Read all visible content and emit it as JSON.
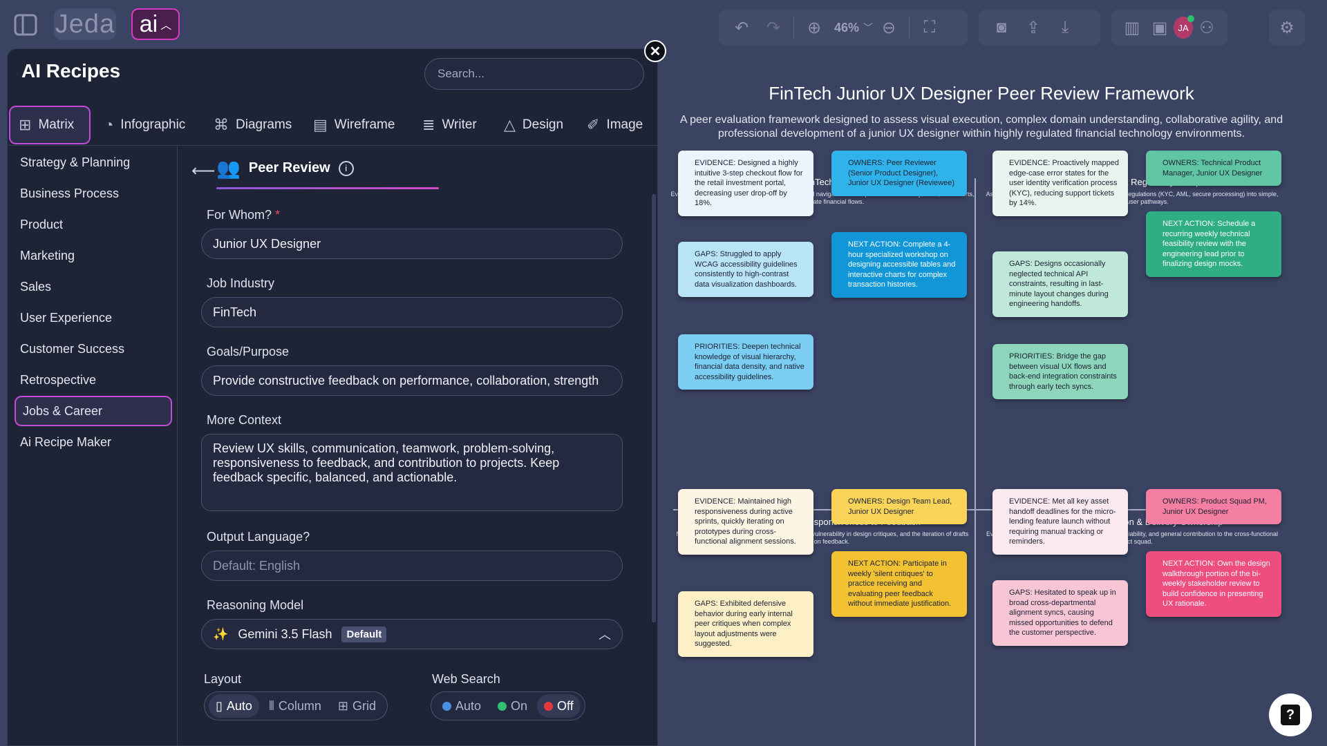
{
  "app": {
    "brand": "Jeda",
    "ai_label": "ai"
  },
  "toolbar": {
    "zoom": "46%"
  },
  "user": {
    "initials": "JA"
  },
  "panel": {
    "title": "AI Recipes",
    "search_placeholder": "Search...",
    "tabs": [
      {
        "label": "Matrix",
        "icon": "grid-icon"
      },
      {
        "label": "Infographic",
        "icon": "pie-chart-icon"
      },
      {
        "label": "Diagrams",
        "icon": "diagram-icon"
      },
      {
        "label": "Wireframe",
        "icon": "wireframe-icon"
      },
      {
        "label": "Writer",
        "icon": "writer-icon"
      },
      {
        "label": "Design",
        "icon": "shapes-icon"
      },
      {
        "label": "Image",
        "icon": "image-icon"
      }
    ],
    "categories": [
      "Strategy & Planning",
      "Business Process",
      "Product",
      "Marketing",
      "Sales",
      "User Experience",
      "Customer Success",
      "Retrospective",
      "Jobs & Career",
      "Ai Recipe Maker"
    ],
    "recipe": {
      "title": "Peer Review"
    },
    "fields": {
      "for_whom": {
        "label": "For Whom?",
        "required": "*",
        "value": "Junior UX Designer"
      },
      "industry": {
        "label": "Job Industry",
        "value": "FinTech"
      },
      "goals": {
        "label": "Goals/Purpose",
        "value": "Provide constructive feedback on performance, collaboration, strength"
      },
      "context": {
        "label": "More Context",
        "value": "Review UX skills, communication, teamwork, problem-solving, responsiveness to feedback, and contribution to projects. Keep feedback specific, balanced, and actionable."
      },
      "language": {
        "label": "Output Language?",
        "placeholder": "Default: English"
      },
      "model": {
        "label": "Reasoning Model",
        "value": "Gemini 3.5 Flash",
        "badge": "Default"
      }
    },
    "layout": {
      "label": "Layout",
      "options": [
        "Auto",
        "Column",
        "Grid"
      ],
      "selected": "Auto"
    },
    "web_search": {
      "label": "Web Search",
      "options": [
        "Auto",
        "On",
        "Off"
      ],
      "selected": "Off",
      "colors": [
        "#4a90e2",
        "#2fbf71",
        "#e5383b"
      ]
    }
  },
  "document": {
    "title": "FinTech Junior UX Designer Peer Review Framework",
    "subtitle": "A peer evaluation framework designed to assess visual execution, complex domain understanding, collaborative agility, and professional development of a junior UX designer within highly regulated financial technology environments.",
    "quadrants": [
      {
        "emoji": "💳",
        "title": "UX Craft & FinTech Domain Mastery",
        "desc": "Evaluating layout execution, interface hierarchy, and navigation of complex transactional systems, fraud alerts, and multi-state financial flows.",
        "notes": [
          {
            "text": "EVIDENCE: Designed a highly intuitive 3-step checkout flow for the retail investment portal, decreasing user drop-off by 18%.",
            "color": "#e9f4fc"
          },
          {
            "text": "OWNERS: Peer Reviewer (Senior Product Designer), Junior UX Designer (Reviewee)",
            "color": "#2fb3ea"
          },
          {
            "text": "GAPS: Struggled to apply WCAG accessibility guidelines consistently to high-contrast data visualization dashboards.",
            "color": "#b9e3f7"
          },
          {
            "text": "NEXT ACTION: Complete a 4-hour specialized workshop on designing accessible tables and interactive charts for complex transaction histories.",
            "color": "#1197d8"
          },
          {
            "text": "PRIORITIES: Deepen technical knowledge of visual hierarchy, financial data density, and native accessibility guidelines.",
            "color": "#7ccdf2"
          }
        ]
      },
      {
        "emoji": "🔒",
        "title": "Problem-Solving & Regulatory Compliance",
        "desc": "Assessing the ability to translate complex financial regulations (KYC, AML, secure processing) into simple, stress-free user pathways.",
        "notes": [
          {
            "text": "EVIDENCE: Proactively mapped edge-case error states for the user identity verification process (KYC), reducing support tickets by 14%.",
            "color": "#e8f5ef"
          },
          {
            "text": "OWNERS: Technical Product Manager, Junior UX Designer",
            "color": "#5fc5a2"
          },
          {
            "text": "GAPS: Designs occasionally neglected technical API constraints, resulting in last-minute layout changes during engineering handoffs.",
            "color": "#c0e8d9"
          },
          {
            "text": "NEXT ACTION: Schedule a recurring weekly technical feasibility review with the engineering lead prior to finalizing design mocks.",
            "color": "#2fae84"
          },
          {
            "text": "PRIORITIES: Bridge the gap between visual UX flows and back-end integration constraints through early tech syncs.",
            "color": "#8dd6bb"
          }
        ]
      },
      {
        "emoji": "🤝",
        "title": "Collaboration & Responsiveness to Feedback",
        "desc": "Measuring communication quality, team synergy, vulnerability in design critiques, and the iteration of drafts based on feedback.",
        "notes": [
          {
            "text": "EVIDENCE: Maintained high responsiveness during active sprints, quickly iterating on prototypes during cross-functional alignment sessions.",
            "color": "#fdf5e4"
          },
          {
            "text": "OWNERS: Design Team Lead, Junior UX Designer",
            "color": "#f9d458"
          },
          {
            "text": "GAPS: Exhibited defensive behavior during early internal peer critiques when complex layout adjustments were suggested.",
            "color": "#fdefc6"
          },
          {
            "text": "NEXT ACTION: Participate in weekly 'silent critiques' to practice receiving and evaluating peer feedback without immediate justification.",
            "color": "#f3c232"
          }
        ]
      },
      {
        "emoji": "🚀",
        "title": "Project Contribution & Delivery Ownership",
        "desc": "Evaluating overall ownership, sprint commitment reliability, and general contribution to the cross-functional product squad.",
        "notes": [
          {
            "text": "EVIDENCE: Met all key asset handoff deadlines for the micro-lending feature launch without requiring manual tracking or reminders.",
            "color": "#fce9ef"
          },
          {
            "text": "OWNERS: Product Squad PM, Junior UX Designer",
            "color": "#f57fa3"
          },
          {
            "text": "GAPS: Hesitated to speak up in broad cross-departmental alignment syncs, causing missed opportunities to defend the customer perspective.",
            "color": "#f8c5d5"
          },
          {
            "text": "NEXT ACTION: Own the design walkthrough portion of the bi-weekly stakeholder review to build confidence in presenting UX rationale.",
            "color": "#ee4d80"
          }
        ]
      }
    ]
  }
}
